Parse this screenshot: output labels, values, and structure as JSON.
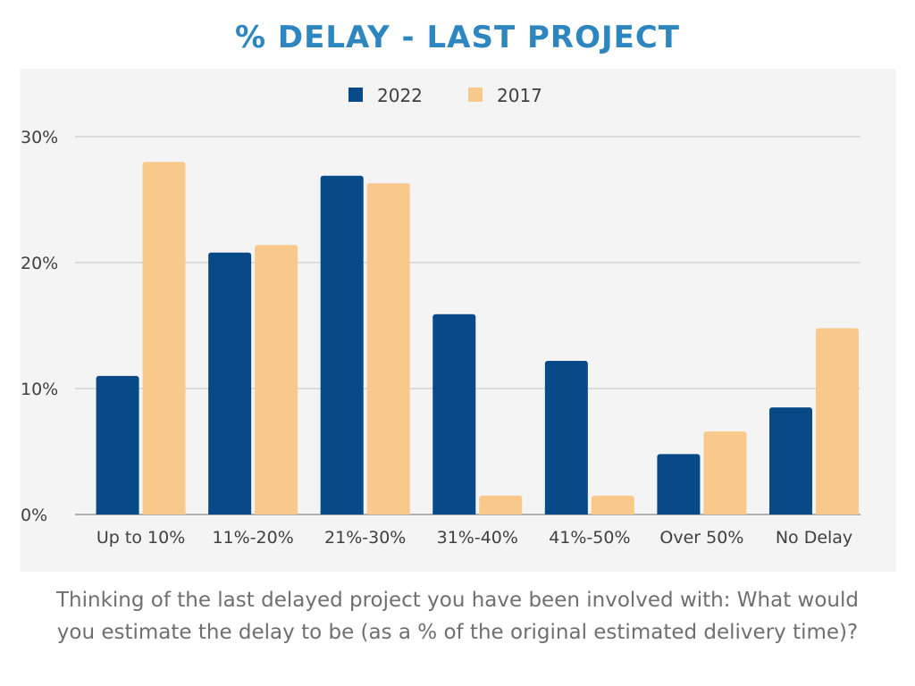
{
  "colors": {
    "title": "#2e86c1",
    "series_2022": "#084a87",
    "series_2017": "#f8c98b",
    "panel_bg": "#f4f4f4",
    "grid": "#c2c2c2",
    "caption": "#6f6f6f"
  },
  "caption": "Thinking of the last delayed project you have been involved with: What would you estimate the delay to be (as a % of the original estimated delivery time)?",
  "chart_data": {
    "type": "bar",
    "title": "% DELAY - LAST PROJECT",
    "categories": [
      "Up to 10%",
      "11%-20%",
      "21%-30%",
      "31%-40%",
      "41%-50%",
      "Over 50%",
      "No Delay"
    ],
    "series": [
      {
        "name": "2022",
        "color": "#084a87",
        "values": [
          11,
          20.8,
          26.9,
          15.9,
          12.2,
          4.8,
          8.5
        ]
      },
      {
        "name": "2017",
        "color": "#f8c98b",
        "values": [
          28,
          21.4,
          26.3,
          1.5,
          1.5,
          6.6,
          14.8
        ]
      }
    ],
    "yticks": [
      "0%",
      "10%",
      "20%",
      "30%"
    ],
    "ylim": [
      0,
      30
    ],
    "grid": true,
    "legend": "top-center",
    "xlabel": "",
    "ylabel": ""
  }
}
